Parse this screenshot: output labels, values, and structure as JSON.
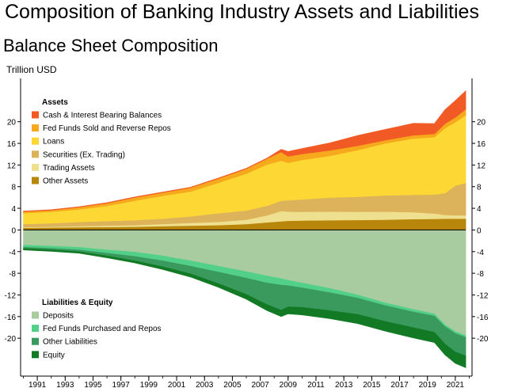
{
  "header": {
    "title": "Composition of Banking Industry Assets and Liabilities",
    "subtitle": "Balance Sheet Composition",
    "units": "Trillion USD"
  },
  "chart_data": {
    "type": "area",
    "ylabel": "Trillion USD",
    "ylim": [
      -27,
      28
    ],
    "y_ticks": [
      -20,
      -16,
      -12,
      -8,
      -4,
      0,
      4,
      8,
      12,
      16,
      20
    ],
    "x_ticks": [
      "1991",
      "1993",
      "1995",
      "1997",
      "1999",
      "2001",
      "2003",
      "2005",
      "2007",
      "2009",
      "2011",
      "2013",
      "2015",
      "2017",
      "2019",
      "2021"
    ],
    "x": [
      1990.0,
      1992,
      1994,
      1996,
      1998,
      2000,
      2002,
      2004,
      2006,
      2007.5,
      2008.5,
      2009,
      2010,
      2012,
      2014,
      2016,
      2018,
      2019.5,
      2020.25,
      2021.0,
      2021.75
    ],
    "legend_placement": "top-left and bottom-left",
    "groups": [
      {
        "name": "Assets",
        "series": [
          {
            "name": "Other Assets",
            "color": "#b8860b",
            "values": [
              0.4,
              0.45,
              0.5,
              0.55,
              0.6,
              0.7,
              0.8,
              0.9,
              1.1,
              1.4,
              1.6,
              1.7,
              1.75,
              1.8,
              1.85,
              1.9,
              2.0,
              2.05,
              2.1,
              2.1,
              2.1
            ]
          },
          {
            "name": "Trading Assets",
            "color": "#eee08e",
            "values": [
              0.1,
              0.15,
              0.2,
              0.25,
              0.3,
              0.4,
              0.5,
              0.6,
              0.8,
              1.3,
              1.9,
              1.7,
              1.6,
              1.6,
              1.5,
              1.5,
              1.3,
              1.0,
              0.7,
              0.6,
              0.6
            ]
          },
          {
            "name": "Securities (Ex. Trading)",
            "color": "#dcb35a",
            "values": [
              0.6,
              0.65,
              0.8,
              0.85,
              0.9,
              1.0,
              1.2,
              1.6,
              1.7,
              1.8,
              1.9,
              2.1,
              2.3,
              2.6,
              2.8,
              3.0,
              3.2,
              3.5,
              4.0,
              5.5,
              6.0
            ]
          },
          {
            "name": "Loans",
            "color": "#fdd835",
            "values": [
              2.0,
              2.1,
              2.3,
              2.8,
              3.6,
              4.2,
              4.6,
              5.6,
              6.8,
              7.6,
              7.4,
              6.9,
              7.3,
              7.7,
              8.6,
              9.6,
              10.4,
              10.6,
              12.0,
              11.7,
              12.5
            ]
          },
          {
            "name": "Fed Funds Sold and Reverse Repos",
            "color": "#f7a91e",
            "values": [
              0.3,
              0.3,
              0.4,
              0.5,
              0.6,
              0.6,
              0.7,
              0.8,
              0.9,
              1.1,
              1.6,
              1.2,
              1.1,
              1.0,
              0.8,
              0.6,
              0.6,
              0.6,
              0.8,
              0.9,
              1.1
            ]
          },
          {
            "name": "Cash & Interest Bearing Balances",
            "color": "#f15a24",
            "values": [
              0.1,
              0.1,
              0.1,
              0.1,
              0.1,
              0.1,
              0.1,
              0.1,
              0.1,
              0.1,
              0.5,
              0.9,
              1.0,
              1.4,
              1.9,
              2.0,
              2.2,
              1.9,
              2.6,
              3.1,
              3.4
            ]
          }
        ]
      },
      {
        "name": "Liabilities & Equity",
        "series": [
          {
            "name": "Deposits",
            "color": "#a8cca0",
            "values": [
              -2.8,
              -3.0,
              -3.2,
              -3.7,
              -4.1,
              -4.8,
              -5.7,
              -6.7,
              -7.7,
              -8.5,
              -9.0,
              -9.3,
              -9.8,
              -10.8,
              -12.0,
              -13.5,
              -14.7,
              -15.5,
              -17.5,
              -18.8,
              -19.5
            ]
          },
          {
            "name": "Fed Funds Purchased and Repos",
            "color": "#52d08a",
            "values": [
              -0.4,
              -0.4,
              -0.5,
              -0.6,
              -0.8,
              -0.9,
              -1.0,
              -1.1,
              -1.2,
              -1.3,
              -1.2,
              -1.0,
              -0.9,
              -0.8,
              -0.6,
              -0.5,
              -0.45,
              -0.4,
              -0.35,
              -0.35,
              -0.35
            ]
          },
          {
            "name": "Other Liabilities",
            "color": "#3a9a5e",
            "values": [
              -0.2,
              -0.25,
              -0.3,
              -0.5,
              -0.8,
              -1.1,
              -1.4,
              -2.1,
              -3.0,
              -4.0,
              -4.6,
              -3.9,
              -3.6,
              -3.3,
              -3.0,
              -2.9,
              -2.9,
              -3.0,
              -3.2,
              -3.4,
              -3.4
            ]
          },
          {
            "name": "Equity",
            "color": "#127a25",
            "values": [
              -0.3,
              -0.3,
              -0.3,
              -0.35,
              -0.4,
              -0.5,
              -0.6,
              -0.7,
              -0.9,
              -1.1,
              -1.2,
              -1.3,
              -1.4,
              -1.5,
              -1.7,
              -1.8,
              -1.9,
              -1.9,
              -2.0,
              -2.1,
              -2.2
            ]
          }
        ]
      }
    ]
  }
}
